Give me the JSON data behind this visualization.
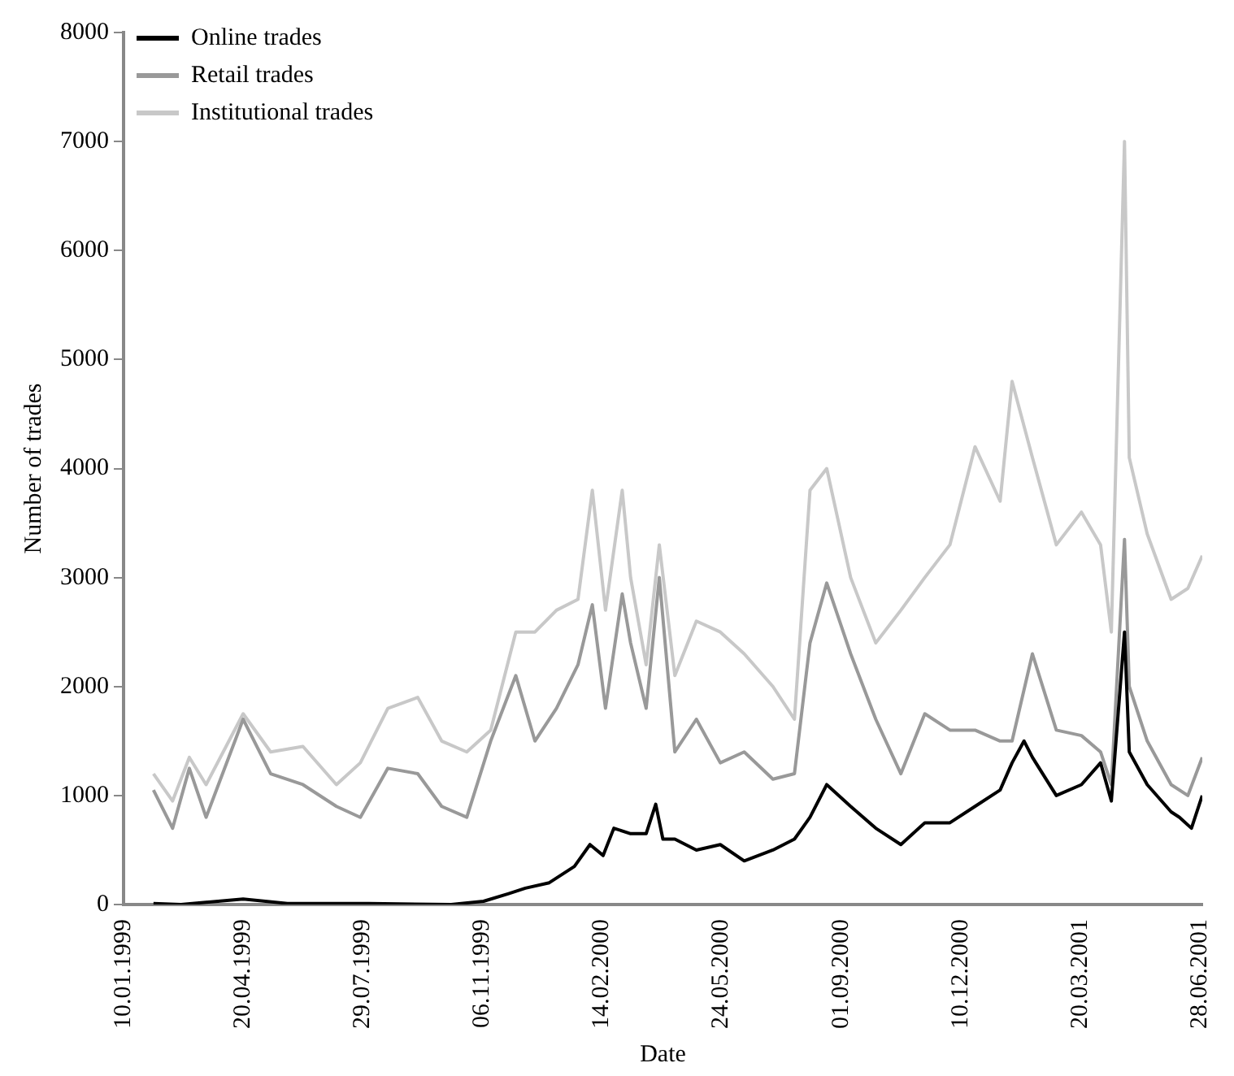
{
  "chart_data": {
    "type": "line",
    "xlabel": "Date",
    "ylabel": "Number of trades",
    "legend": "top left",
    "grid": false,
    "marker": "none",
    "line_style": "solid",
    "xlim": [
      "1999-01-10",
      "2001-06-30"
    ],
    "xticks": [
      {
        "value": "1999-01-10",
        "label": "10.01.1999"
      },
      {
        "value": "1999-04-20",
        "label": "20.04.1999"
      },
      {
        "value": "1999-07-29",
        "label": "29.07.1999"
      },
      {
        "value": "1999-11-06",
        "label": "06.11.1999"
      },
      {
        "value": "2000-02-14",
        "label": "14.02.2000"
      },
      {
        "value": "2000-05-24",
        "label": "24.05.2000"
      },
      {
        "value": "2000-09-01",
        "label": "01.09.2000"
      },
      {
        "value": "2000-12-10",
        "label": "10.12.2000"
      },
      {
        "value": "2001-03-20",
        "label": "20.03.2001"
      },
      {
        "value": "2001-06-28",
        "label": "28.06.2001"
      }
    ],
    "ylim": [
      0,
      8000
    ],
    "yticks": [
      0,
      1000,
      2000,
      3000,
      4000,
      5000,
      6000,
      7000,
      8000
    ],
    "series": [
      {
        "name": "Online trades",
        "color": "#000000",
        "x": [
          "1999-02-04",
          "1999-02-27",
          "1999-04-20",
          "1999-05-27",
          "1999-08-03",
          "1999-10-11",
          "1999-11-07",
          "1999-11-28",
          "1999-12-12",
          "2000-01-01",
          "2000-01-22",
          "2000-02-04",
          "2000-02-15",
          "2000-02-24",
          "2000-03-09",
          "2000-03-22",
          "2000-03-30",
          "2000-04-05",
          "2000-04-15",
          "2000-05-03",
          "2000-05-23",
          "2000-06-12",
          "2000-07-06",
          "2000-07-24",
          "2000-08-06",
          "2000-08-20",
          "2000-09-09",
          "2000-09-30",
          "2000-10-21",
          "2000-11-10",
          "2000-12-01",
          "2000-12-22",
          "2001-01-12",
          "2001-01-22",
          "2001-02-01",
          "2001-02-08",
          "2001-02-28",
          "2001-03-21",
          "2001-04-06",
          "2001-04-15",
          "2001-04-26",
          "2001-04-30",
          "2001-05-15",
          "2001-06-04",
          "2001-06-11",
          "2001-06-21",
          "2001-06-30"
        ],
        "values": [
          10,
          0,
          50,
          10,
          10,
          0,
          30,
          100,
          150,
          200,
          350,
          550,
          450,
          700,
          650,
          650,
          920,
          600,
          600,
          500,
          550,
          400,
          500,
          600,
          800,
          1100,
          900,
          700,
          550,
          750,
          750,
          900,
          1050,
          1300,
          1500,
          1350,
          1000,
          1100,
          1300,
          950,
          2500,
          1400,
          1100,
          850,
          800,
          700,
          1000
        ]
      },
      {
        "name": "Retail trades",
        "color": "#999999",
        "x": [
          "1999-02-04",
          "1999-02-20",
          "1999-03-06",
          "1999-03-20",
          "1999-04-20",
          "1999-05-13",
          "1999-06-09",
          "1999-07-07",
          "1999-07-27",
          "1999-08-19",
          "1999-09-13",
          "1999-10-03",
          "1999-10-24",
          "1999-11-13",
          "1999-12-04",
          "1999-12-20",
          "2000-01-07",
          "2000-01-25",
          "2000-02-06",
          "2000-02-17",
          "2000-03-02",
          "2000-03-09",
          "2000-03-22",
          "2000-04-02",
          "2000-04-15",
          "2000-05-03",
          "2000-05-23",
          "2000-06-12",
          "2000-07-06",
          "2000-07-24",
          "2000-08-06",
          "2000-08-20",
          "2000-09-09",
          "2000-09-30",
          "2000-10-21",
          "2000-11-10",
          "2000-12-01",
          "2000-12-22",
          "2001-01-12",
          "2001-01-22",
          "2001-02-08",
          "2001-02-28",
          "2001-03-21",
          "2001-04-06",
          "2001-04-15",
          "2001-04-26",
          "2001-04-30",
          "2001-05-15",
          "2001-06-04",
          "2001-06-18",
          "2001-06-30"
        ],
        "values": [
          1050,
          700,
          1250,
          800,
          1700,
          1200,
          1100,
          900,
          800,
          1250,
          1200,
          900,
          800,
          1500,
          2100,
          1500,
          1800,
          2200,
          2750,
          1800,
          2850,
          2400,
          1800,
          3000,
          1400,
          1700,
          1300,
          1400,
          1150,
          1200,
          2400,
          2950,
          2300,
          1700,
          1200,
          1750,
          1600,
          1600,
          1500,
          1500,
          2300,
          1600,
          1550,
          1400,
          1100,
          3350,
          2000,
          1500,
          1100,
          1000,
          1350
        ]
      },
      {
        "name": "Institutional trades",
        "color": "#c8c8c8",
        "x": [
          "1999-02-04",
          "1999-02-20",
          "1999-03-06",
          "1999-03-20",
          "1999-04-20",
          "1999-05-13",
          "1999-06-09",
          "1999-07-07",
          "1999-07-27",
          "1999-08-19",
          "1999-09-13",
          "1999-10-03",
          "1999-10-24",
          "1999-11-13",
          "1999-12-04",
          "1999-12-20",
          "2000-01-07",
          "2000-01-25",
          "2000-02-06",
          "2000-02-17",
          "2000-03-02",
          "2000-03-09",
          "2000-03-22",
          "2000-04-02",
          "2000-04-15",
          "2000-05-03",
          "2000-05-23",
          "2000-06-12",
          "2000-07-06",
          "2000-07-24",
          "2000-08-06",
          "2000-08-20",
          "2000-09-09",
          "2000-09-30",
          "2000-10-21",
          "2000-11-10",
          "2000-12-01",
          "2000-12-22",
          "2001-01-12",
          "2001-01-22",
          "2001-02-08",
          "2001-02-28",
          "2001-03-21",
          "2001-04-06",
          "2001-04-15",
          "2001-04-26",
          "2001-04-30",
          "2001-05-15",
          "2001-06-04",
          "2001-06-18",
          "2001-06-30"
        ],
        "values": [
          1200,
          950,
          1350,
          1100,
          1750,
          1400,
          1450,
          1100,
          1300,
          1800,
          1900,
          1500,
          1400,
          1600,
          2500,
          2500,
          2700,
          2800,
          3800,
          2700,
          3800,
          3000,
          2200,
          3300,
          2100,
          2600,
          2500,
          2300,
          2000,
          1700,
          3800,
          4000,
          3000,
          2400,
          2700,
          3000,
          3300,
          4200,
          3700,
          4800,
          4100,
          3300,
          3600,
          3300,
          2500,
          7000,
          4100,
          3400,
          2800,
          2900,
          3200
        ]
      }
    ]
  }
}
